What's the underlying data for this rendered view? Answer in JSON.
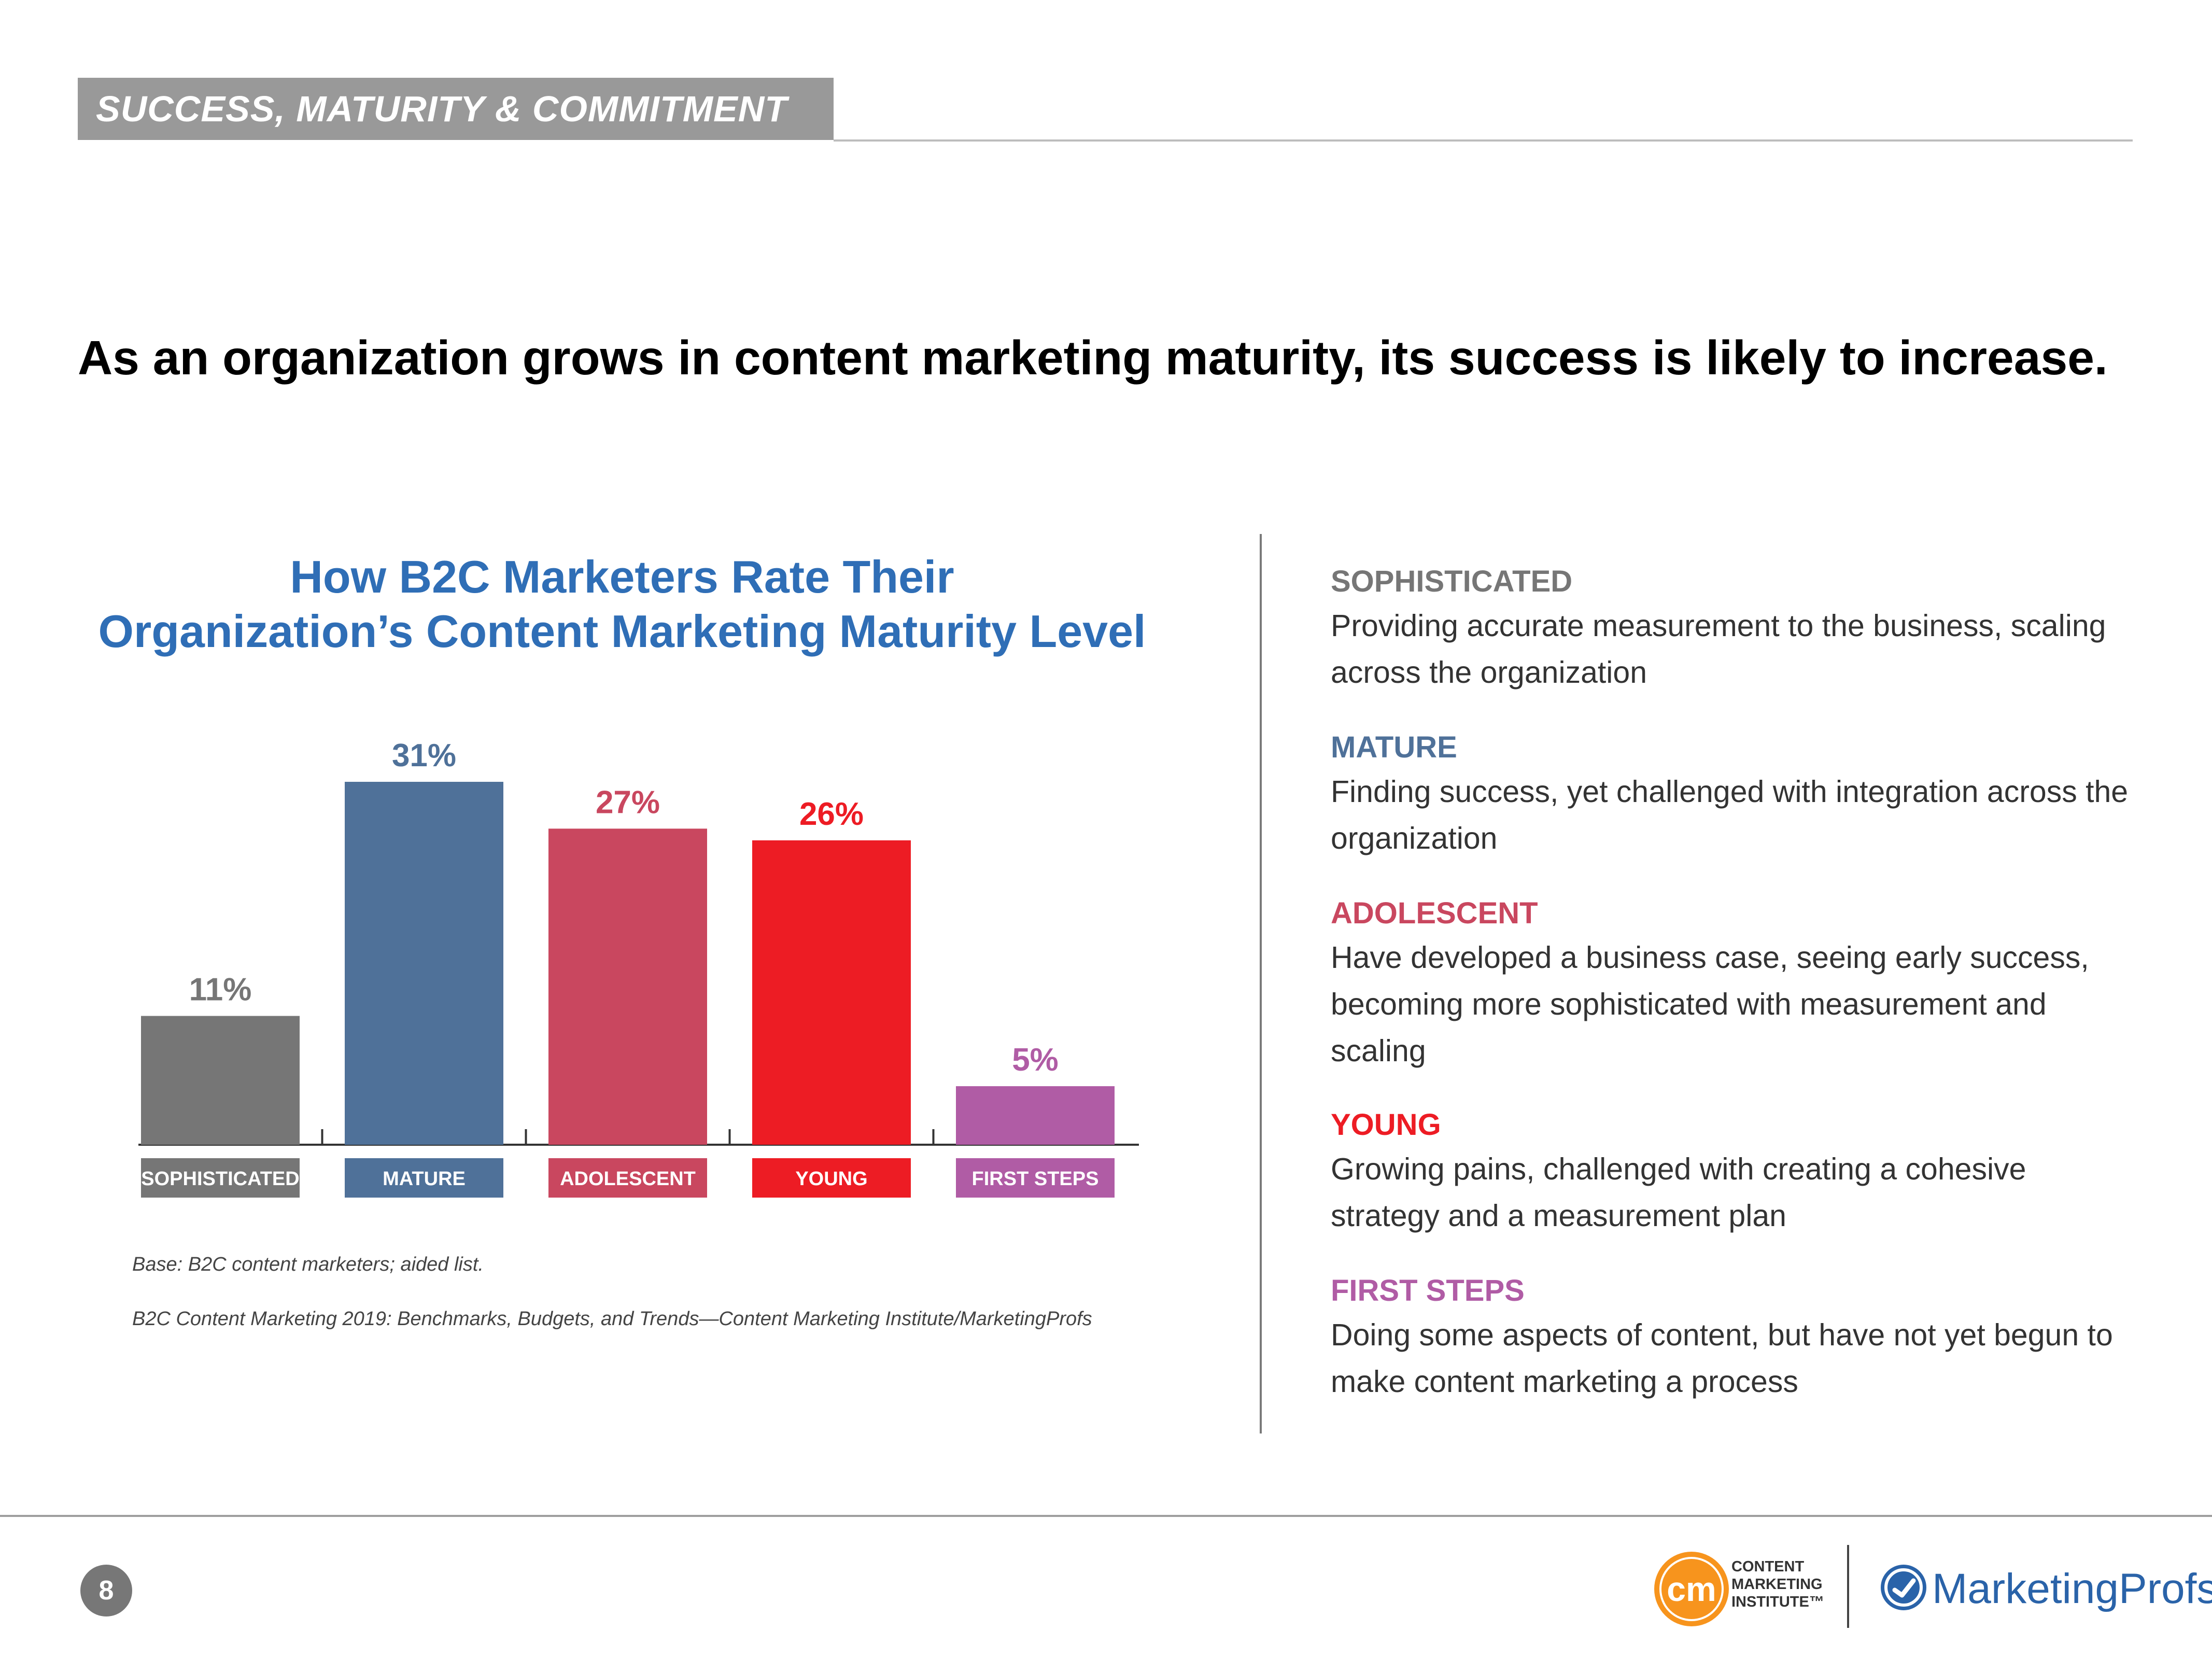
{
  "section": {
    "banner": "SUCCESS, MATURITY & COMMITMENT"
  },
  "headline": "As an organization grows in content marketing maturity, its success is likely to increase.",
  "chart_data": {
    "type": "bar",
    "title": "How B2C Marketers Rate Their Organization’s Content Marketing Maturity Level",
    "title_lines": [
      "How B2C Marketers Rate Their",
      "Organization’s Content Marketing Maturity Level"
    ],
    "categories": [
      "SOPHISTICATED",
      "MATURE",
      "ADOLESCENT",
      "YOUNG",
      "FIRST STEPS"
    ],
    "values": [
      11,
      31,
      27,
      26,
      5
    ],
    "value_labels": [
      "11%",
      "31%",
      "27%",
      "26%",
      "5%"
    ],
    "colors": [
      "#767676",
      "#4f7199",
      "#c9475f",
      "#ed1c24",
      "#b05ca5"
    ],
    "label_colors": [
      "#767676",
      "#4f7199",
      "#c9475f",
      "#ed1c24",
      "#b05ca5"
    ],
    "ylim": [
      0,
      35
    ],
    "xlabel": "",
    "ylabel": "",
    "grid": false
  },
  "notes": {
    "base": "Base: B2C content marketers; aided list.",
    "source": "B2C Content Marketing 2019: Benchmarks, Budgets, and Trends—Content Marketing Institute/MarketingProfs"
  },
  "legend": [
    {
      "label": "SOPHISTICATED",
      "color": "#767676",
      "desc": "Providing accurate measurement to the business, scaling across the organization"
    },
    {
      "label": "MATURE",
      "color": "#4f7199",
      "desc": "Finding success, yet challenged with integration across the organization"
    },
    {
      "label": "ADOLESCENT",
      "color": "#c9475f",
      "desc": "Have developed a business case, seeing early success, becoming more sophisticated with measurement and scaling"
    },
    {
      "label": "YOUNG",
      "color": "#ed1c24",
      "desc": "Growing pains, challenged with creating a cohesive strategy and a measurement plan"
    },
    {
      "label": "FIRST STEPS",
      "color": "#b05ca5",
      "desc": "Doing some aspects of content, but have not yet begun to make content marketing a process"
    }
  ],
  "footer": {
    "page_number": "8",
    "cmi_logo_text": "cm",
    "cmi_lines": [
      "CONTENT",
      "MARKETING",
      "INSTITUTE™"
    ],
    "marketingprofs": "MarketingProfs"
  }
}
